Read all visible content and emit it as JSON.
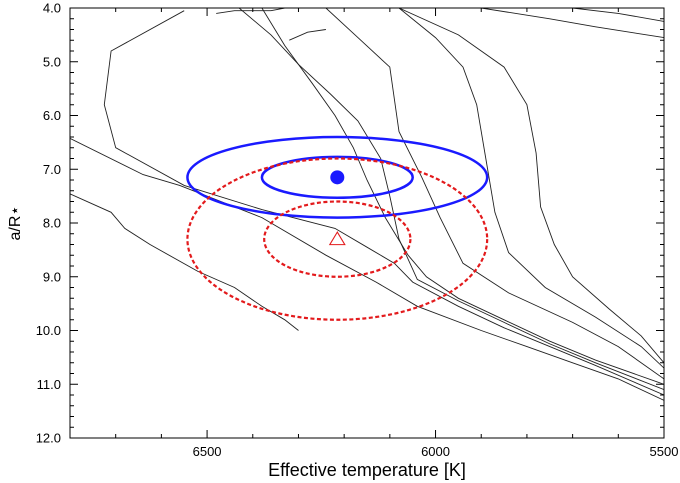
{
  "chart_data": {
    "type": "line",
    "xlabel": "Effective temperature [K]",
    "ylabel": "a/R⋆",
    "xlim": [
      6800,
      5500
    ],
    "ylim": [
      4.0,
      12.0
    ],
    "y_inverted": true,
    "x_ticks": [
      "6500",
      "6000",
      "5500"
    ],
    "y_ticks": [
      "4.0",
      "5.0",
      "6.0",
      "7.0",
      "8.0",
      "9.0",
      "10.0",
      "11.0",
      "12.0"
    ],
    "grid": false,
    "legend": "none",
    "colors": {
      "isochrone": "#222222",
      "solid_fit": "#1a1aff",
      "dashed_fit": "#e31a1c",
      "axes": "#000000"
    },
    "isochrones": [
      {
        "x": [
          6815,
          6710,
          6680,
          6625,
          6520,
          6440,
          6380,
          6330,
          6300
        ],
        "y": [
          7.4,
          7.8,
          8.1,
          8.4,
          8.9,
          9.2,
          9.55,
          9.8,
          10.0
        ]
      },
      {
        "x": [
          6830,
          6640,
          6560,
          6380,
          6240,
          6130,
          6040,
          5900,
          5800,
          5700,
          5600,
          5500
        ],
        "y": [
          6.3,
          7.1,
          7.3,
          7.9,
          8.6,
          9.1,
          9.55,
          10.0,
          10.3,
          10.6,
          10.9,
          11.3
        ]
      },
      {
        "x": [
          6550,
          6710,
          6725,
          6700,
          6550,
          6380,
          6220,
          6150,
          6090,
          6050,
          5950,
          5850,
          5750,
          5650,
          5500
        ],
        "y": [
          4.05,
          4.8,
          5.8,
          6.6,
          7.3,
          7.75,
          8.1,
          8.45,
          8.75,
          9.1,
          9.55,
          9.95,
          10.3,
          10.65,
          11.2
        ]
      },
      {
        "x": [
          6430,
          6360,
          6300,
          6230,
          6170,
          6120,
          6100,
          6080,
          6040,
          5950,
          5850,
          5750,
          5650,
          5500
        ],
        "y": [
          4.0,
          4.5,
          5.05,
          5.6,
          6.1,
          6.8,
          7.5,
          8.3,
          9.05,
          9.45,
          9.85,
          10.25,
          10.6,
          11.1
        ]
      },
      {
        "x": [
          6380,
          6330,
          6270,
          6220,
          6180,
          6150,
          6110,
          6060,
          6020,
          5950,
          5850,
          5750,
          5650,
          5500
        ],
        "y": [
          4.0,
          4.7,
          5.4,
          6.0,
          6.6,
          7.2,
          7.9,
          8.6,
          9.0,
          9.4,
          9.8,
          10.2,
          10.55,
          11.0
        ]
      },
      {
        "x": [
          6240,
          6170,
          6100,
          6080,
          6030,
          5990,
          5940,
          5840,
          5700,
          5600,
          5500
        ],
        "y": [
          4.0,
          4.55,
          5.1,
          6.3,
          7.15,
          7.9,
          8.75,
          9.3,
          9.85,
          10.3,
          10.9
        ]
      },
      {
        "x": [
          6080,
          6000,
          5940,
          5910,
          5890,
          5870,
          5840,
          5760,
          5650,
          5550,
          5500
        ],
        "y": [
          4.0,
          4.55,
          5.1,
          5.8,
          6.8,
          7.8,
          8.55,
          9.2,
          9.75,
          10.3,
          10.7
        ]
      },
      {
        "x": [
          6080,
          5950,
          5850,
          5800,
          5780,
          5770,
          5740,
          5700,
          5620,
          5550,
          5500
        ],
        "y": [
          4.0,
          4.5,
          5.1,
          5.8,
          6.7,
          7.7,
          8.4,
          9.0,
          9.6,
          10.1,
          10.6
        ]
      },
      {
        "x": [
          5900,
          5750,
          5650,
          5500
        ],
        "y": [
          4.0,
          4.2,
          4.35,
          4.55
        ]
      },
      {
        "x": [
          5700,
          5600,
          5500
        ],
        "y": [
          4.0,
          4.1,
          4.25
        ]
      },
      {
        "x": [
          6480,
          6440,
          6360,
          6330
        ],
        "y": [
          4.1,
          4.05,
          4.05,
          4.0
        ]
      },
      {
        "x": [
          6320,
          6280,
          6240
        ],
        "y": [
          4.6,
          4.45,
          4.4
        ]
      }
    ],
    "solid_point": {
      "x": 6215,
      "y": 7.15
    },
    "solid_ellipses": [
      {
        "rx": 165,
        "ry": 0.38
      },
      {
        "rx": 328,
        "ry": 0.75
      }
    ],
    "dashed_point": {
      "x": 6215,
      "y": 8.3
    },
    "dashed_ellipses": [
      {
        "rx": 160,
        "ry": 0.7
      },
      {
        "rx": 328,
        "ry": 1.5
      }
    ]
  }
}
